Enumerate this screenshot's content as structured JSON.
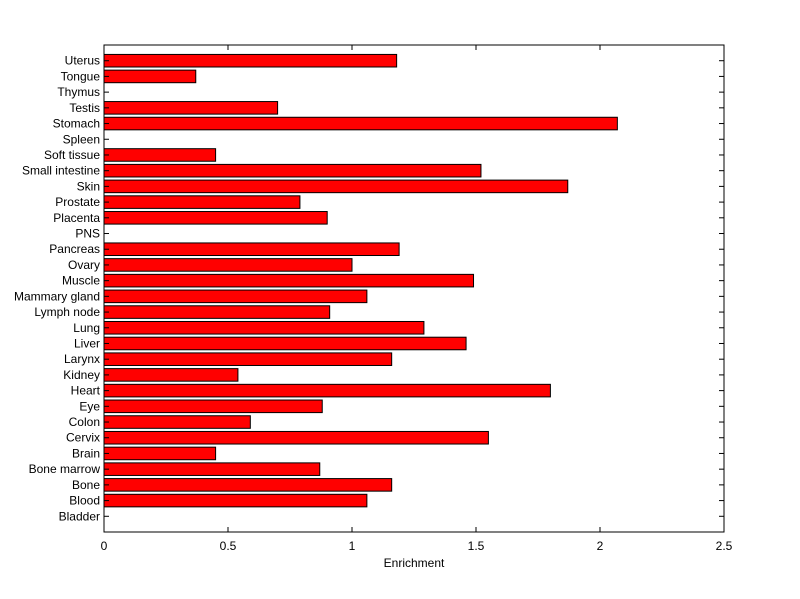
{
  "chart_data": {
    "type": "bar",
    "orientation": "horizontal",
    "title": "",
    "xlabel": "Enrichment",
    "ylabel": "",
    "xlim": [
      0,
      2.5
    ],
    "xticks": [
      0,
      0.5,
      1,
      1.5,
      2,
      2.5
    ],
    "xtick_labels": [
      "0",
      "0.5",
      "1",
      "1.5",
      "2",
      "2.5"
    ],
    "grid": false,
    "bar_color": "#ff0000",
    "edge_color": "#000000",
    "categories": [
      "Bladder",
      "Blood",
      "Bone",
      "Bone marrow",
      "Brain",
      "Cervix",
      "Colon",
      "Eye",
      "Heart",
      "Kidney",
      "Larynx",
      "Liver",
      "Lung",
      "Lymph node",
      "Mammary gland",
      "Muscle",
      "Ovary",
      "Pancreas",
      "PNS",
      "Placenta",
      "Prostate",
      "Skin",
      "Small intestine",
      "Soft tissue",
      "Spleen",
      "Stomach",
      "Testis",
      "Thymus",
      "Tongue",
      "Uterus"
    ],
    "values": [
      0,
      1.06,
      1.16,
      0.87,
      0.45,
      1.55,
      0.59,
      0.88,
      1.8,
      0.54,
      1.16,
      1.46,
      1.29,
      0.91,
      1.06,
      1.49,
      1.0,
      1.19,
      0,
      0.9,
      0.79,
      1.87,
      1.52,
      0.45,
      0,
      2.07,
      0.7,
      0,
      0.37,
      1.18
    ]
  }
}
